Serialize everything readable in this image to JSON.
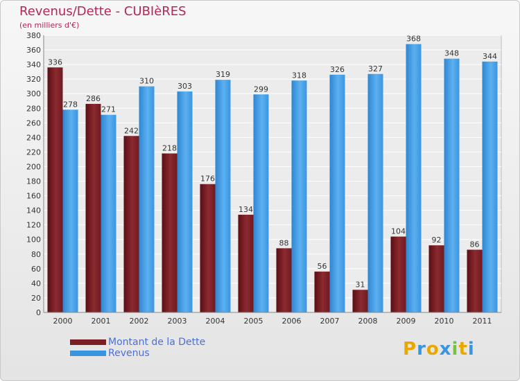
{
  "title": "Revenus/Dette - CUBIèRES",
  "subtitle": "(en milliers d'€)",
  "colors": {
    "debt": "#7a1f25",
    "revenue": "#3a95e0",
    "title": "#b5245a",
    "legend_text": "#4a6fdc"
  },
  "chart_data": {
    "type": "bar",
    "categories": [
      "2000",
      "2001",
      "2002",
      "2003",
      "2004",
      "2005",
      "2006",
      "2007",
      "2008",
      "2009",
      "2010",
      "2011"
    ],
    "series": [
      {
        "name": "Montant de la Dette",
        "values": [
          336,
          286,
          242,
          218,
          176,
          134,
          88,
          56,
          31,
          104,
          92,
          86
        ]
      },
      {
        "name": "Revenus",
        "values": [
          278,
          271,
          310,
          303,
          319,
          299,
          318,
          326,
          327,
          368,
          348,
          344
        ]
      }
    ],
    "ylim": [
      0,
      380
    ],
    "yticks": [
      0,
      20,
      40,
      60,
      80,
      100,
      120,
      140,
      160,
      180,
      200,
      220,
      240,
      260,
      280,
      300,
      320,
      340,
      360,
      380
    ],
    "grid": true,
    "legend_position": "bottom-left"
  },
  "logo": {
    "letters": [
      "P",
      "r",
      "o",
      "x",
      "i",
      "t",
      "i"
    ],
    "colors": [
      "#e8a800",
      "#3a95e0",
      "#e8a800",
      "#3a95e0",
      "#7ac143",
      "#e8a800",
      "#3a95e0"
    ]
  }
}
